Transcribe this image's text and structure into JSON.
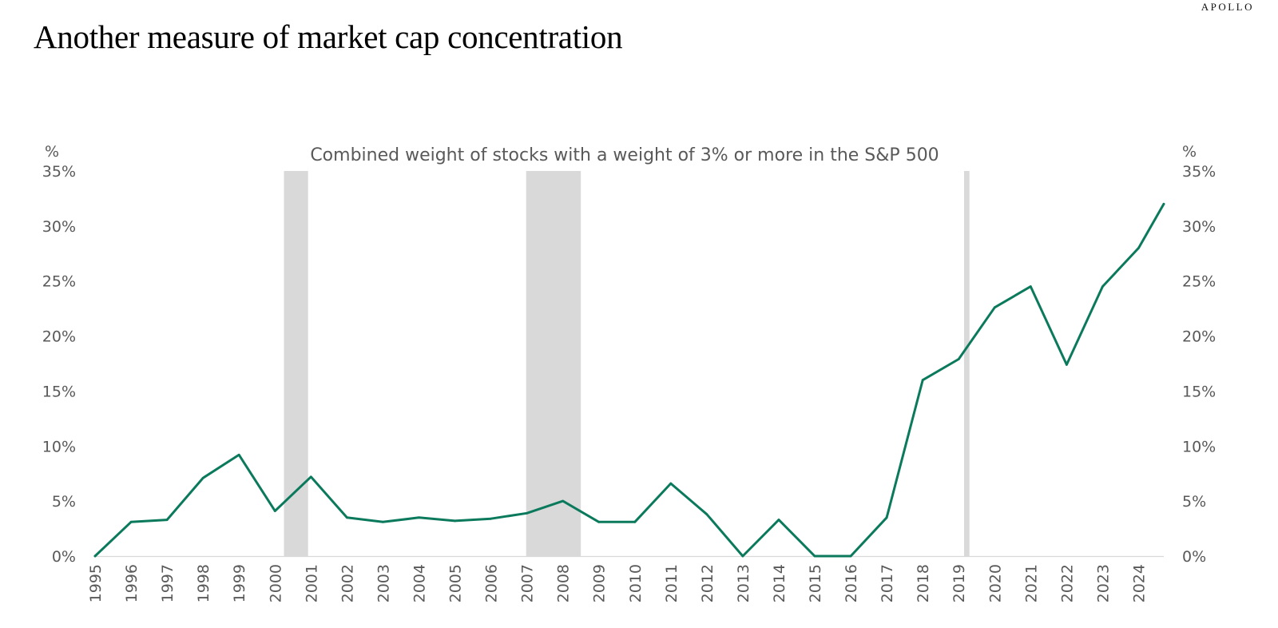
{
  "header": {
    "brand": "APOLLO",
    "title": "Another measure of market cap concentration"
  },
  "chart_data": {
    "type": "line",
    "title": "Combined weight of stocks with a weight of 3% or more in the S&P 500",
    "y_unit_left": "%",
    "y_unit_right": "%",
    "ylim": [
      0,
      35
    ],
    "yticks": [
      "0%",
      "5%",
      "10%",
      "15%",
      "20%",
      "25%",
      "30%",
      "35%"
    ],
    "x_tick_labels": [
      "1995",
      "1996",
      "1997",
      "1998",
      "1999",
      "2000",
      "2001",
      "2002",
      "2003",
      "2004",
      "2005",
      "2006",
      "2007",
      "2008",
      "2009",
      "2010",
      "2011",
      "2012",
      "2013",
      "2014",
      "2015",
      "2016",
      "2017",
      "2018",
      "2019",
      "2020",
      "2021",
      "2022",
      "2023",
      "2024"
    ],
    "xlim": [
      1995,
      2024.7
    ],
    "grid": false,
    "line_color": "#0b7a5c",
    "recession_color": "#d9d9d9",
    "recessions": [
      {
        "start": 2000.25,
        "end": 2000.92
      },
      {
        "start": 2006.98,
        "end": 2008.5
      },
      {
        "start": 2019.15,
        "end": 2019.3
      }
    ],
    "series": [
      {
        "x": [
          1995,
          1996,
          1997,
          1998,
          1999,
          2000,
          2001,
          2002,
          2003,
          2004,
          2005,
          2006,
          2007,
          2008,
          2009,
          2010,
          2011,
          2012,
          2013,
          2014,
          2015,
          2016,
          2017,
          2018,
          2019,
          2020,
          2021,
          2022,
          2023,
          2024,
          2024.7
        ],
        "values": [
          0.0,
          3.1,
          3.3,
          7.1,
          9.2,
          4.1,
          7.2,
          3.5,
          3.1,
          3.5,
          3.2,
          3.4,
          3.9,
          5.0,
          3.1,
          3.1,
          6.6,
          3.8,
          0.0,
          3.3,
          0.0,
          0.0,
          3.5,
          16.0,
          17.9,
          22.6,
          24.5,
          17.4,
          24.5,
          28.0,
          32.0
        ]
      }
    ]
  }
}
